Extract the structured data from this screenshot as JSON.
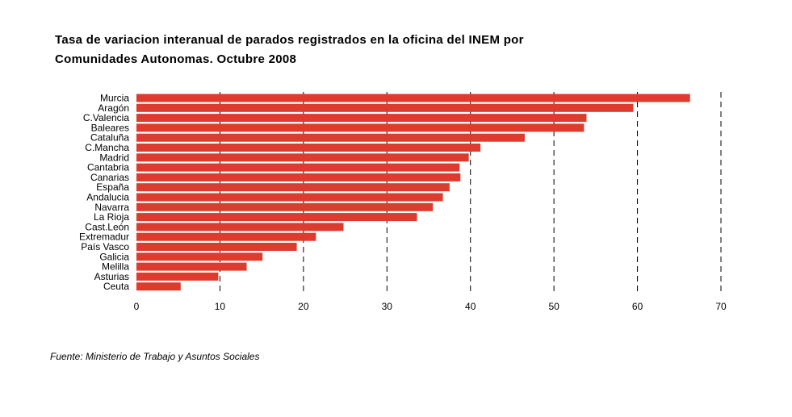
{
  "chart_data": {
    "type": "bar",
    "orientation": "horizontal",
    "title_lines": [
      "Tasa de variacion interanual de parados registrados en la oficina del INEM por",
      "Comunidades Autonomas. Octubre 2008"
    ],
    "categories": [
      "Murcia",
      "Aragón",
      "C.Valencia",
      "Baleares",
      "Cataluña",
      "C.Mancha",
      "Madrid",
      "Cantabria",
      "Canarias",
      "España",
      "Andalucia",
      "Navarra",
      "La Rioja",
      "Cast.León",
      "Extremadur",
      "País Vasco",
      "Galicia",
      "Melilla",
      "Asturias",
      "Ceuta"
    ],
    "values": [
      66.3,
      59.5,
      53.9,
      53.6,
      46.5,
      41.2,
      39.8,
      38.7,
      38.8,
      37.5,
      36.7,
      35.5,
      33.6,
      24.8,
      21.5,
      19.2,
      15.1,
      13.2,
      9.8,
      5.3
    ],
    "xlim": [
      0,
      70
    ],
    "xticks": [
      "0",
      "10",
      "20",
      "30",
      "40",
      "50",
      "60",
      "70"
    ],
    "grid": "vertical dashed",
    "bar_color": "#dd3b2e",
    "source": "Fuente: Ministerio de Trabajo y Asuntos Sociales"
  }
}
